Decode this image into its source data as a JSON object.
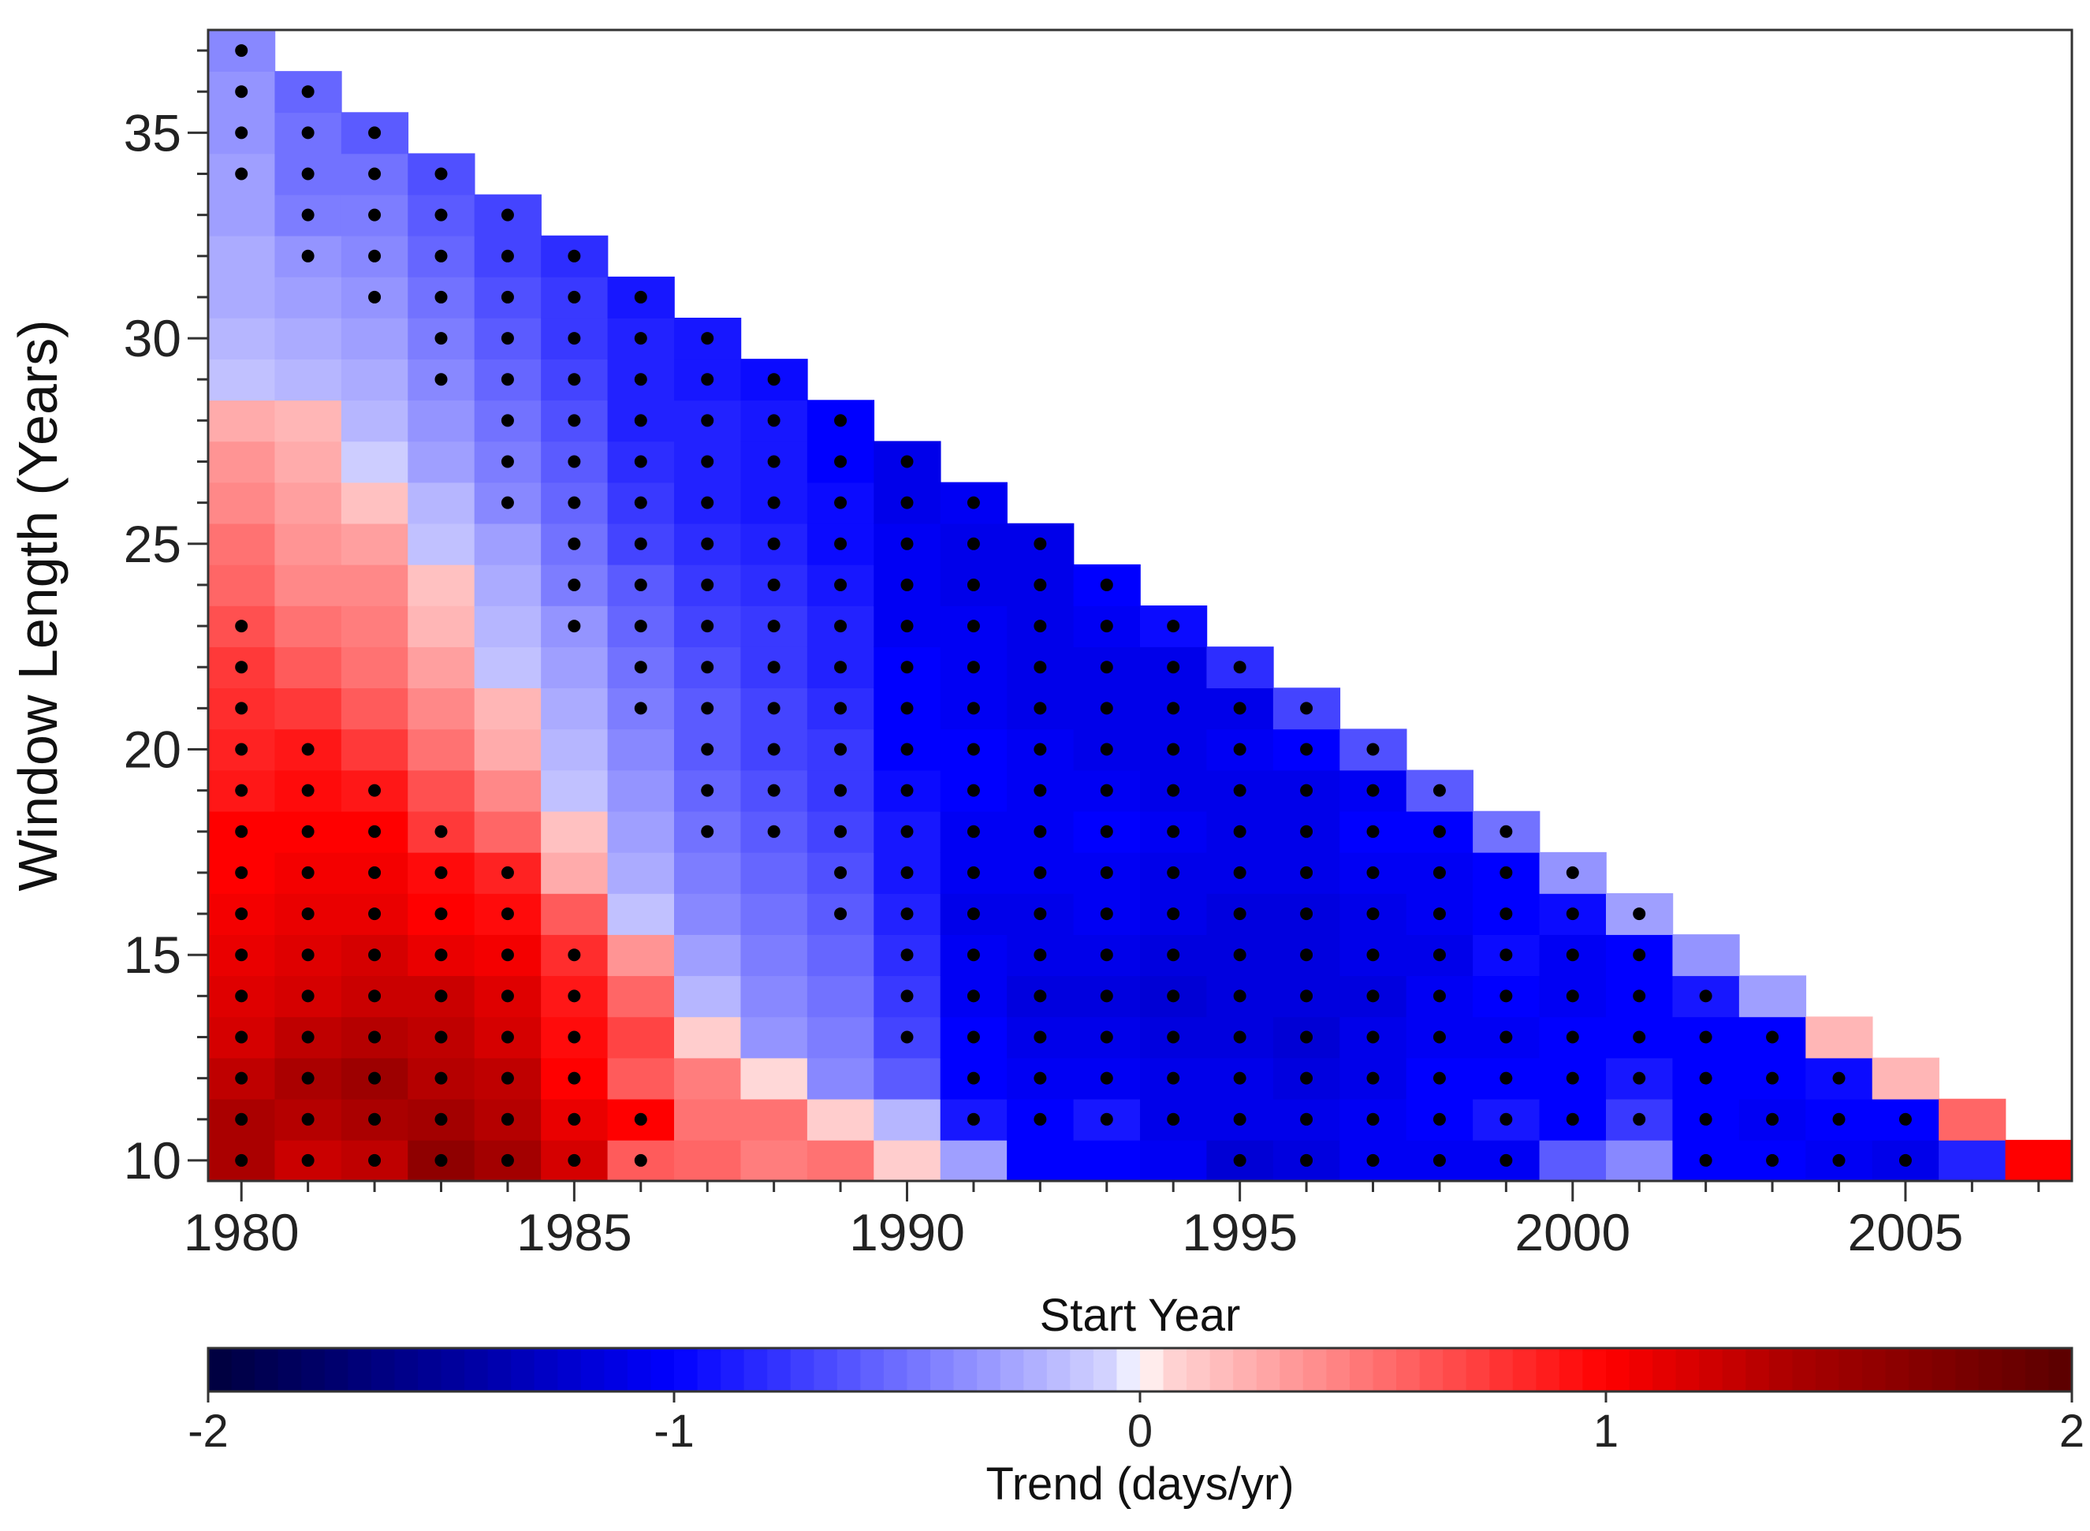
{
  "chart_data": {
    "type": "heatmap",
    "title": "",
    "xlabel": "Start Year",
    "ylabel": "Window Length (Years)",
    "x_range": [
      1980,
      2007
    ],
    "y_range": [
      10,
      37
    ],
    "xlim": [
      1979.5,
      2007.5
    ],
    "ylim": [
      9.5,
      37.5
    ],
    "x_ticks": [
      1980,
      1985,
      1990,
      1995,
      2000,
      2005
    ],
    "y_ticks": [
      10,
      15,
      20,
      25,
      30,
      35
    ],
    "x_tick_labels": [
      "1980",
      "1985",
      "1990",
      "1995",
      "2000",
      "2005"
    ],
    "y_tick_labels": [
      "10",
      "15",
      "20",
      "25",
      "30",
      "35"
    ],
    "valid_cells_rule": "start_year + window_length <= 2017",
    "value_range": [
      -2,
      2
    ],
    "colorbar": {
      "label": "Trend (days/yr)",
      "ticks": [
        -2,
        -1,
        0,
        1,
        2
      ],
      "tick_labels": [
        "-2",
        "-1",
        "0",
        "1",
        "2"
      ],
      "colors": [
        "#00003c",
        "#0000aa",
        "#0000ff",
        "#d8d8ff",
        "#ffffff",
        "#ffd8d8",
        "#ff0000",
        "#aa0000",
        "#5a0000"
      ],
      "stops": [
        -2,
        -1.4,
        -1,
        -0.05,
        0,
        0.05,
        1,
        1.4,
        2
      ],
      "segments": 80
    },
    "significance_marker": "dot",
    "value_columns_note": "values[i] = trends for start year 1980+i, index j = window length 10+j",
    "values": [
      [
        1.4,
        1.4,
        1.3,
        1.2,
        1.15,
        1.1,
        1.05,
        1.0,
        1.0,
        0.9,
        0.85,
        0.8,
        0.75,
        0.65,
        0.55,
        0.5,
        0.4,
        0.35,
        0.25,
        -0.15,
        -0.2,
        -0.25,
        -0.25,
        -0.3,
        -0.3,
        -0.35,
        -0.35,
        -0.4
      ],
      [
        1.25,
        1.35,
        1.4,
        1.3,
        1.2,
        1.15,
        1.1,
        1.05,
        1.0,
        0.95,
        0.9,
        0.75,
        0.6,
        0.5,
        0.4,
        0.35,
        0.3,
        0.25,
        0.2,
        -0.2,
        -0.25,
        -0.3,
        -0.35,
        -0.45,
        -0.5,
        -0.5,
        -0.55
      ],
      [
        1.3,
        1.4,
        1.5,
        1.35,
        1.25,
        1.2,
        1.1,
        1.05,
        1.0,
        0.9,
        0.75,
        0.6,
        0.5,
        0.45,
        0.4,
        0.3,
        0.15,
        -0.1,
        -0.2,
        -0.25,
        -0.3,
        -0.35,
        -0.4,
        -0.45,
        -0.5,
        -0.6
      ],
      [
        1.6,
        1.45,
        1.35,
        1.3,
        1.25,
        1.1,
        1.0,
        0.95,
        0.75,
        0.65,
        0.5,
        0.4,
        0.3,
        0.2,
        0.15,
        -0.15,
        -0.2,
        -0.3,
        -0.35,
        -0.4,
        -0.45,
        -0.5,
        -0.55,
        -0.6,
        -0.65
      ],
      [
        1.45,
        1.35,
        1.3,
        1.2,
        1.15,
        1.05,
        0.95,
        0.85,
        0.55,
        0.4,
        0.25,
        0.2,
        -0.15,
        -0.2,
        -0.25,
        -0.3,
        -0.4,
        -0.45,
        -0.5,
        -0.55,
        -0.6,
        -0.65,
        -0.7,
        -0.7
      ],
      [
        1.2,
        1.1,
        1.0,
        0.95,
        0.9,
        0.8,
        0.6,
        0.25,
        0.15,
        -0.15,
        -0.2,
        -0.25,
        -0.3,
        -0.35,
        -0.45,
        -0.5,
        -0.55,
        -0.6,
        -0.65,
        -0.7,
        -0.75,
        -0.75,
        -0.8
      ],
      [
        0.6,
        1.0,
        0.6,
        0.7,
        0.55,
        0.35,
        -0.15,
        -0.25,
        -0.3,
        -0.35,
        -0.4,
        -0.45,
        -0.5,
        -0.55,
        -0.6,
        -0.7,
        -0.75,
        -0.8,
        -0.85,
        -0.85,
        -0.85,
        -0.9
      ],
      [
        0.55,
        0.5,
        0.45,
        0.1,
        -0.2,
        -0.3,
        -0.4,
        -0.45,
        -0.5,
        -0.55,
        -0.6,
        -0.6,
        -0.65,
        -0.7,
        -0.75,
        -0.8,
        -0.85,
        -0.85,
        -0.85,
        -0.9,
        -0.9
      ],
      [
        0.45,
        0.5,
        0.05,
        -0.35,
        -0.4,
        -0.45,
        -0.5,
        -0.55,
        -0.6,
        -0.65,
        -0.7,
        -0.7,
        -0.75,
        -0.75,
        -0.8,
        -0.85,
        -0.9,
        -0.9,
        -0.9,
        -0.95
      ],
      [
        0.5,
        0.1,
        -0.4,
        -0.45,
        -0.5,
        -0.55,
        -0.6,
        -0.65,
        -0.7,
        -0.75,
        -0.75,
        -0.8,
        -0.85,
        -0.85,
        -0.9,
        -0.95,
        -0.95,
        -1.0,
        -1.0
      ],
      [
        0.1,
        -0.2,
        -0.6,
        -0.7,
        -0.75,
        -0.8,
        -0.85,
        -0.9,
        -0.9,
        -0.95,
        -1.0,
        -1.0,
        -1.0,
        -1.05,
        -1.05,
        -1.05,
        -1.1,
        -1.1
      ],
      [
        -0.3,
        -0.9,
        -1.0,
        -1.0,
        -1.05,
        -1.05,
        -1.1,
        -1.05,
        -1.05,
        -1.0,
        -1.0,
        -1.05,
        -1.05,
        -1.05,
        -1.1,
        -1.1,
        -1.05
      ],
      [
        -1.0,
        -1.0,
        -1.05,
        -1.1,
        -1.15,
        -1.1,
        -1.1,
        -1.05,
        -1.05,
        -1.05,
        -1.05,
        -1.1,
        -1.1,
        -1.1,
        -1.1,
        -1.1
      ],
      [
        -1.0,
        -0.9,
        -1.05,
        -1.1,
        -1.15,
        -1.1,
        -1.05,
        -1.05,
        -1.0,
        -1.05,
        -1.1,
        -1.1,
        -1.1,
        -1.05,
        -1.0
      ],
      [
        -1.05,
        -1.1,
        -1.1,
        -1.15,
        -1.2,
        -1.15,
        -1.1,
        -1.1,
        -1.05,
        -1.1,
        -1.1,
        -1.1,
        -1.1,
        -0.95
      ],
      [
        -1.2,
        -1.1,
        -1.1,
        -1.15,
        -1.15,
        -1.15,
        -1.15,
        -1.1,
        -1.1,
        -1.1,
        -1.05,
        -1.1,
        -0.8
      ],
      [
        -1.15,
        -1.1,
        -1.15,
        -1.2,
        -1.15,
        -1.15,
        -1.15,
        -1.1,
        -1.1,
        -1.1,
        -1.0,
        -0.7
      ],
      [
        -1.05,
        -1.05,
        -1.1,
        -1.1,
        -1.15,
        -1.1,
        -1.1,
        -1.05,
        -1.0,
        -1.05,
        -0.65
      ],
      [
        -1.05,
        -1.0,
        -1.0,
        -1.05,
        -1.05,
        -1.1,
        -1.05,
        -1.05,
        -1.0,
        -0.6
      ],
      [
        -1.05,
        -0.9,
        -1.0,
        -1.05,
        -1.0,
        -0.95,
        -1.0,
        -1.0,
        -0.5
      ],
      [
        -0.6,
        -1.0,
        -1.0,
        -1.0,
        -1.05,
        -1.05,
        -0.95,
        -0.35
      ],
      [
        -0.4,
        -0.75,
        -0.9,
        -1.0,
        -1.0,
        -1.0,
        -0.3
      ],
      [
        -1.0,
        -1.0,
        -1.0,
        -1.0,
        -0.9,
        -0.35
      ],
      [
        -1.0,
        -1.05,
        -1.0,
        -1.0,
        -0.3
      ],
      [
        -1.05,
        -1.0,
        -0.95,
        0.2
      ],
      [
        -1.1,
        -1.0,
        0.2
      ],
      [
        -0.85,
        0.55
      ],
      [
        1.0
      ]
    ],
    "significant": [
      [
        1,
        1,
        1,
        1,
        1,
        1,
        1,
        1,
        1,
        1,
        1,
        1,
        1,
        1,
        0,
        0,
        0,
        0,
        0,
        0,
        0,
        0,
        0,
        0,
        1,
        1,
        1,
        1
      ],
      [
        1,
        1,
        1,
        1,
        1,
        1,
        1,
        1,
        1,
        1,
        1,
        0,
        0,
        0,
        0,
        0,
        0,
        0,
        0,
        0,
        0,
        0,
        1,
        1,
        1,
        1,
        1
      ],
      [
        1,
        1,
        1,
        1,
        1,
        1,
        1,
        1,
        1,
        1,
        0,
        0,
        0,
        0,
        0,
        0,
        0,
        0,
        0,
        0,
        0,
        1,
        1,
        1,
        1,
        1
      ],
      [
        1,
        1,
        1,
        1,
        1,
        1,
        1,
        1,
        1,
        0,
        0,
        0,
        0,
        0,
        0,
        0,
        0,
        0,
        0,
        1,
        1,
        1,
        1,
        1,
        1
      ],
      [
        1,
        1,
        1,
        1,
        1,
        1,
        1,
        1,
        0,
        0,
        0,
        0,
        0,
        0,
        0,
        0,
        1,
        1,
        1,
        1,
        1,
        1,
        1,
        1
      ],
      [
        1,
        1,
        1,
        1,
        1,
        1,
        0,
        0,
        0,
        0,
        0,
        0,
        0,
        1,
        1,
        1,
        1,
        1,
        1,
        1,
        1,
        1,
        1
      ],
      [
        1,
        1,
        0,
        0,
        0,
        0,
        0,
        0,
        0,
        0,
        0,
        1,
        1,
        1,
        1,
        1,
        1,
        1,
        1,
        1,
        1,
        1
      ],
      [
        0,
        0,
        0,
        0,
        0,
        0,
        0,
        0,
        1,
        1,
        1,
        1,
        1,
        1,
        1,
        1,
        1,
        1,
        1,
        1,
        1
      ],
      [
        0,
        0,
        0,
        0,
        0,
        0,
        0,
        0,
        1,
        1,
        1,
        1,
        1,
        1,
        1,
        1,
        1,
        1,
        1,
        1
      ],
      [
        0,
        0,
        0,
        0,
        0,
        0,
        1,
        1,
        1,
        1,
        1,
        1,
        1,
        1,
        1,
        1,
        1,
        1,
        1
      ],
      [
        0,
        0,
        0,
        1,
        1,
        1,
        1,
        1,
        1,
        1,
        1,
        1,
        1,
        1,
        1,
        1,
        1,
        1
      ],
      [
        0,
        1,
        1,
        1,
        1,
        1,
        1,
        1,
        1,
        1,
        1,
        1,
        1,
        1,
        1,
        1,
        1
      ],
      [
        0,
        1,
        1,
        1,
        1,
        1,
        1,
        1,
        1,
        1,
        1,
        1,
        1,
        1,
        1,
        1
      ],
      [
        0,
        1,
        1,
        1,
        1,
        1,
        1,
        1,
        1,
        1,
        1,
        1,
        1,
        1,
        1
      ],
      [
        0,
        1,
        1,
        1,
        1,
        1,
        1,
        1,
        1,
        1,
        1,
        1,
        1,
        1
      ],
      [
        1,
        1,
        1,
        1,
        1,
        1,
        1,
        1,
        1,
        1,
        1,
        1,
        1
      ],
      [
        1,
        1,
        1,
        1,
        1,
        1,
        1,
        1,
        1,
        1,
        1,
        1
      ],
      [
        1,
        1,
        1,
        1,
        1,
        1,
        1,
        1,
        1,
        1,
        1
      ],
      [
        1,
        1,
        1,
        1,
        1,
        1,
        1,
        1,
        1,
        1
      ],
      [
        1,
        1,
        1,
        1,
        1,
        1,
        1,
        1,
        1
      ],
      [
        0,
        1,
        1,
        1,
        1,
        1,
        1,
        1
      ],
      [
        0,
        1,
        1,
        1,
        1,
        1,
        1
      ],
      [
        1,
        1,
        1,
        1,
        1,
        0
      ],
      [
        1,
        1,
        1,
        1,
        0
      ],
      [
        1,
        1,
        1,
        0
      ],
      [
        1,
        1,
        0
      ],
      [
        0,
        0
      ],
      [
        0
      ]
    ]
  }
}
